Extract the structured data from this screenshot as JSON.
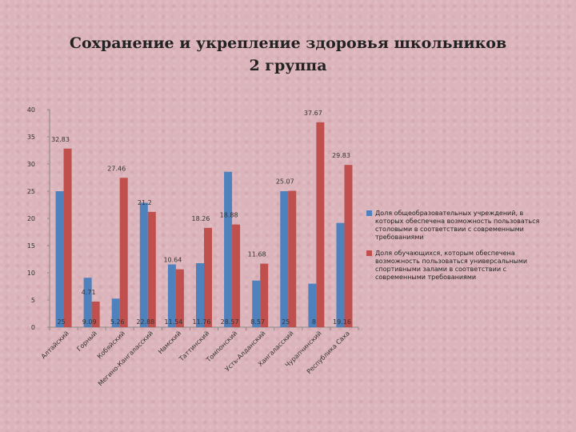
{
  "title": {
    "line1": "Сохранение и укрепление здоровья школьников",
    "line2": "2 группа"
  },
  "colors": {
    "series1": "#4f81bd",
    "series2": "#c0504d"
  },
  "chart_data": {
    "type": "bar",
    "ylim": [
      0,
      40
    ],
    "yticks": [
      0,
      5,
      10,
      15,
      20,
      25,
      30,
      35,
      40
    ],
    "grid": false,
    "legend_position": "right",
    "categories": [
      "Алтайский",
      "Горный",
      "Кобяйский",
      "Мегино-Кангаласский",
      "Намский",
      "Таттинский",
      "Томпонский",
      "Усть-Алданский",
      "Хангаласский",
      "Чурапчинский",
      "Республика Саха"
    ],
    "series": [
      {
        "name": "Доля общеобразовательных учреждений, в которых обеспечена возможность пользоваться столовыми в соответствии с современными требованиями",
        "values": [
          25,
          9.09,
          5.26,
          22.88,
          11.54,
          11.76,
          28.57,
          8.57,
          25,
          8,
          19.16
        ],
        "labels": [
          "25",
          "9.09",
          "5.26",
          "22.88",
          "11.54",
          "11.76",
          "28.57",
          "8.57",
          "25",
          "8",
          "19.16"
        ]
      },
      {
        "name": "Доля обучающихся, которым обеспечена возможность пользоваться универсальными спортивными залами в соответствии с современными требованиями",
        "values": [
          32.83,
          4.71,
          27.46,
          21.2,
          10.64,
          18.26,
          18.88,
          11.68,
          25.07,
          37.67,
          29.83
        ],
        "labels": [
          "32.83",
          "4.71",
          "27.46",
          "21.2",
          "10.64",
          "18.26",
          "18.88",
          "11.68",
          "25.07",
          "37.67",
          "29.83"
        ]
      }
    ]
  }
}
